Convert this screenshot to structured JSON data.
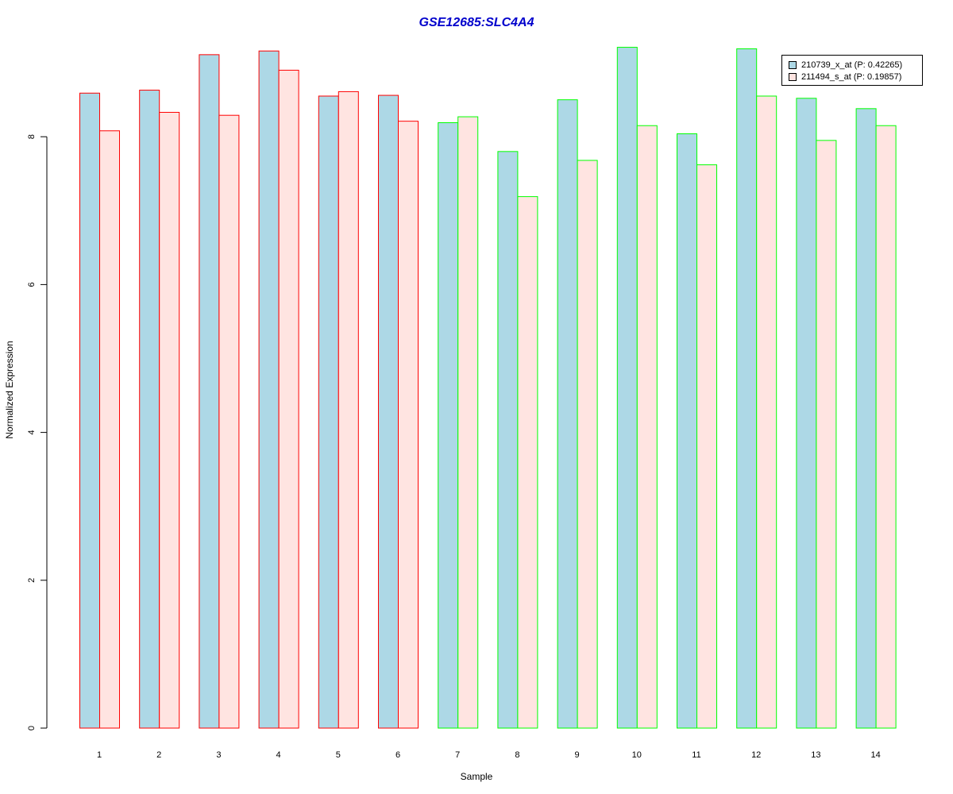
{
  "chart_data": {
    "type": "bar",
    "title": "GSE12685:SLC4A4",
    "title_color": "#0000cc",
    "xlabel": "Sample",
    "ylabel": "Normalized Expression",
    "categories": [
      "1",
      "2",
      "3",
      "4",
      "5",
      "6",
      "7",
      "8",
      "9",
      "10",
      "11",
      "12",
      "13",
      "14"
    ],
    "ylim": [
      0,
      9.2
    ],
    "yticks": [
      "0",
      "2",
      "4",
      "6",
      "8"
    ],
    "grid": false,
    "legend_position": "top-right",
    "series": [
      {
        "name": "210739_x_at (P: 0.42265)",
        "fill": "#add8e6",
        "values": [
          8.59,
          8.63,
          9.11,
          9.16,
          8.55,
          8.56,
          8.19,
          7.8,
          8.5,
          9.21,
          8.04,
          9.19,
          8.52,
          8.38
        ]
      },
      {
        "name": "211494_s_at (P: 0.19857)",
        "fill": "#ffe4e1",
        "values": [
          8.08,
          8.33,
          8.29,
          8.9,
          8.61,
          8.21,
          8.27,
          7.19,
          7.68,
          8.15,
          7.62,
          8.55,
          7.95,
          8.15
        ]
      }
    ],
    "group_border_colors": [
      "#ff0000",
      "#ff0000",
      "#ff0000",
      "#ff0000",
      "#ff0000",
      "#ff0000",
      "#00ff00",
      "#00ff00",
      "#00ff00",
      "#00ff00",
      "#00ff00",
      "#00ff00",
      "#00ff00",
      "#00ff00"
    ]
  }
}
